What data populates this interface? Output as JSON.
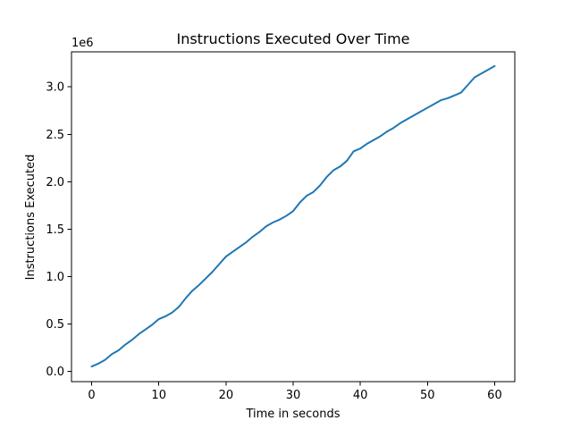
{
  "chart_data": {
    "type": "line",
    "title": "Instructions Executed Over Time",
    "xlabel": "Time in seconds",
    "ylabel": "Instructions Executed",
    "offset_label": "1e6",
    "xlim": [
      -3,
      63
    ],
    "ylim": [
      -0.11,
      3.37
    ],
    "x_ticks": [
      0,
      10,
      20,
      30,
      40,
      50,
      60
    ],
    "x_tick_labels": [
      "0",
      "10",
      "20",
      "30",
      "40",
      "50",
      "60"
    ],
    "y_ticks": [
      0.0,
      0.5,
      1.0,
      1.5,
      2.0,
      2.5,
      3.0
    ],
    "y_tick_labels": [
      "0.0",
      "0.5",
      "1.0",
      "1.5",
      "2.0",
      "2.5",
      "3.0"
    ],
    "grid": false,
    "legend": "none",
    "line_color": "#1f77b4",
    "series": [
      {
        "x": [
          0,
          1,
          2,
          3,
          4,
          5,
          6,
          7,
          8,
          9,
          10,
          11,
          12,
          13,
          14,
          15,
          16,
          17,
          18,
          19,
          20,
          21,
          22,
          23,
          24,
          25,
          26,
          27,
          28,
          29,
          30,
          31,
          32,
          33,
          34,
          35,
          36,
          37,
          38,
          39,
          40,
          41,
          42,
          43,
          44,
          45,
          46,
          47,
          48,
          49,
          50,
          51,
          52,
          53,
          54,
          55,
          56,
          57,
          58,
          59,
          60
        ],
        "y": [
          0.05,
          0.08,
          0.12,
          0.18,
          0.22,
          0.28,
          0.33,
          0.39,
          0.44,
          0.49,
          0.55,
          0.58,
          0.62,
          0.68,
          0.77,
          0.85,
          0.91,
          0.98,
          1.05,
          1.13,
          1.21,
          1.26,
          1.31,
          1.36,
          1.42,
          1.47,
          1.53,
          1.57,
          1.6,
          1.64,
          1.69,
          1.78,
          1.85,
          1.89,
          1.96,
          2.05,
          2.12,
          2.16,
          2.22,
          2.32,
          2.35,
          2.4,
          2.44,
          2.48,
          2.53,
          2.57,
          2.62,
          2.66,
          2.7,
          2.74,
          2.78,
          2.82,
          2.86,
          2.88,
          2.91,
          2.94,
          3.02,
          3.1,
          3.14,
          3.18,
          3.22
        ]
      }
    ]
  }
}
